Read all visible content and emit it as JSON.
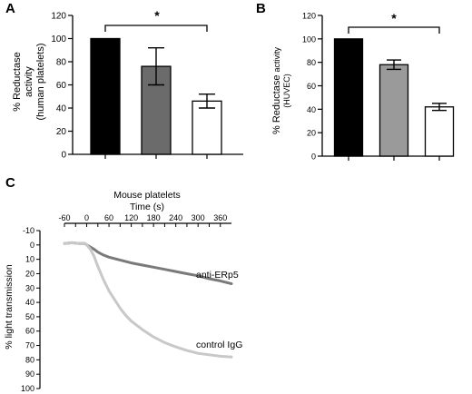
{
  "chart_data": [
    {
      "panel": "A",
      "type": "bar",
      "ylabel_lines": [
        "% Reductase",
        "activity",
        "(human platelets)"
      ],
      "ylim": [
        0,
        120
      ],
      "yticks": [
        0,
        20,
        40,
        60,
        80,
        100,
        120
      ],
      "values": [
        100,
        76,
        46
      ],
      "errors": [
        0,
        16,
        6
      ],
      "colors": [
        "#000000",
        "#6b6b6b",
        "#ffffff"
      ],
      "significance": "*"
    },
    {
      "panel": "B",
      "type": "bar",
      "ylabel_main": "% Reductase",
      "ylabel_small": "activity",
      "ylabel_sub": "(HUVEC)",
      "ylim": [
        0,
        120
      ],
      "yticks": [
        0,
        20,
        40,
        60,
        80,
        100,
        120
      ],
      "values": [
        100,
        78,
        42
      ],
      "errors": [
        0,
        4,
        3
      ],
      "colors": [
        "#000000",
        "#9a9a9a",
        "#ffffff"
      ],
      "significance": "*"
    },
    {
      "panel": "C",
      "type": "line",
      "title_lines": [
        "Mouse platelets",
        "Time (s)"
      ],
      "ylabel": "% light transmission",
      "xlim": [
        -60,
        390
      ],
      "xticks": [
        -60,
        -30,
        0,
        30,
        60,
        90,
        120,
        150,
        180,
        210,
        240,
        270,
        300,
        330,
        360
      ],
      "xtick_labels": [
        -60,
        0,
        60,
        120,
        180,
        240,
        300,
        360
      ],
      "ylim": [
        -10,
        100
      ],
      "yticks": [
        -10,
        0,
        10,
        20,
        30,
        40,
        50,
        60,
        70,
        80,
        90,
        100
      ],
      "series": [
        {
          "name": "anti-ERp5",
          "color": "#7a7a7a",
          "x": [
            -60,
            -40,
            -20,
            -5,
            0,
            10,
            20,
            30,
            45,
            60,
            90,
            120,
            150,
            180,
            210,
            240,
            270,
            300,
            330,
            360,
            390
          ],
          "y": [
            -1,
            -1.5,
            -1,
            -1,
            0,
            1.5,
            3,
            5,
            7,
            8.5,
            10.5,
            12.5,
            14,
            15.5,
            17,
            18.5,
            20,
            21.5,
            23.5,
            25,
            27
          ]
        },
        {
          "name": "control IgG",
          "color": "#c8c8c8",
          "x": [
            -60,
            -40,
            -20,
            -5,
            0,
            10,
            20,
            30,
            45,
            60,
            75,
            90,
            105,
            120,
            150,
            180,
            210,
            240,
            270,
            300,
            330,
            360,
            390
          ],
          "y": [
            -1,
            -1.5,
            -1,
            -1,
            0,
            3,
            8,
            15,
            24,
            32,
            38,
            44,
            49,
            53,
            59,
            64,
            68,
            71,
            73.5,
            75.5,
            76.5,
            77.5,
            78
          ]
        }
      ]
    }
  ]
}
